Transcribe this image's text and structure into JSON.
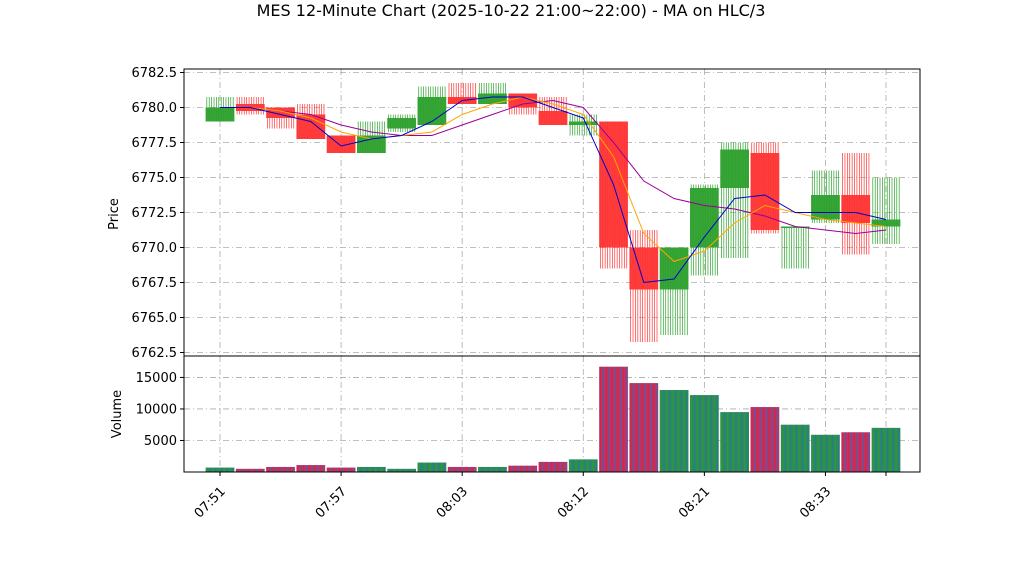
{
  "title": "MES 12-Minute Chart (2025-10-22 21:00~22:00) - MA on HLC/3",
  "chart_data": {
    "type": "candlestick",
    "title": "MES 12-Minute Chart (2025-10-22 21:00~22:00) - MA on HLC/3",
    "price_ylabel": "Price",
    "volume_ylabel": "Volume",
    "price_ylim": [
      6762.25,
      6782.75
    ],
    "price_ticks": [
      "6762.5",
      "6765.0",
      "6767.5",
      "6770.0",
      "6772.5",
      "6775.0",
      "6777.5",
      "6780.0",
      "6782.5"
    ],
    "volume_ylim": [
      0,
      18400
    ],
    "volume_ticks": [
      "5000",
      "10000",
      "15000"
    ],
    "x_tick_labels": [
      "07:51",
      "07:57",
      "08:03",
      "08:12",
      "08:21",
      "08:33"
    ],
    "colors": {
      "up": "#2ca02c",
      "down": "#ff3333",
      "ma_fast": "#0000cc",
      "ma_mid": "#ffa500",
      "ma_slow": "#990099",
      "grid": "#aaaaaa"
    },
    "candles": [
      {
        "open": 6779.0,
        "high": 6780.75,
        "low": 6779.0,
        "close": 6780.0,
        "volume": 700
      },
      {
        "open": 6780.25,
        "high": 6780.75,
        "low": 6779.5,
        "close": 6779.75,
        "volume": 500
      },
      {
        "open": 6780.0,
        "high": 6780.0,
        "low": 6778.5,
        "close": 6779.25,
        "volume": 800
      },
      {
        "open": 6779.5,
        "high": 6780.25,
        "low": 6777.75,
        "close": 6777.75,
        "volume": 1100
      },
      {
        "open": 6778.0,
        "high": 6778.0,
        "low": 6776.75,
        "close": 6776.75,
        "volume": 700
      },
      {
        "open": 6776.75,
        "high": 6779.0,
        "low": 6776.75,
        "close": 6778.0,
        "volume": 800
      },
      {
        "open": 6778.5,
        "high": 6779.5,
        "low": 6778.25,
        "close": 6779.25,
        "volume": 500
      },
      {
        "open": 6778.75,
        "high": 6781.5,
        "low": 6778.75,
        "close": 6780.75,
        "volume": 1500
      },
      {
        "open": 6780.75,
        "high": 6781.75,
        "low": 6780.25,
        "close": 6780.25,
        "volume": 800
      },
      {
        "open": 6780.25,
        "high": 6781.75,
        "low": 6780.25,
        "close": 6781.0,
        "volume": 800
      },
      {
        "open": 6781.0,
        "high": 6781.0,
        "low": 6779.5,
        "close": 6780.0,
        "volume": 1000
      },
      {
        "open": 6779.75,
        "high": 6780.75,
        "low": 6778.75,
        "close": 6778.75,
        "volume": 1600
      },
      {
        "open": 6778.75,
        "high": 6779.5,
        "low": 6778.0,
        "close": 6779.0,
        "volume": 2000
      },
      {
        "open": 6779.0,
        "high": 6779.0,
        "low": 6768.5,
        "close": 6770.0,
        "volume": 16700
      },
      {
        "open": 6770.0,
        "high": 6771.25,
        "low": 6763.25,
        "close": 6767.0,
        "volume": 14100
      },
      {
        "open": 6767.0,
        "high": 6770.0,
        "low": 6763.75,
        "close": 6770.0,
        "volume": 13000
      },
      {
        "open": 6770.0,
        "high": 6774.5,
        "low": 6768.0,
        "close": 6774.25,
        "volume": 12200
      },
      {
        "open": 6774.25,
        "high": 6777.5,
        "low": 6769.25,
        "close": 6777.0,
        "volume": 9500
      },
      {
        "open": 6776.75,
        "high": 6777.5,
        "low": 6771.0,
        "close": 6771.25,
        "volume": 10300
      },
      {
        "open": 6771.5,
        "high": 6771.5,
        "low": 6768.5,
        "close": 6771.5,
        "volume": 7500
      },
      {
        "open": 6772.0,
        "high": 6775.5,
        "low": 6771.75,
        "close": 6773.75,
        "volume": 5900
      },
      {
        "open": 6773.75,
        "high": 6776.75,
        "low": 6769.5,
        "close": 6771.75,
        "volume": 6300
      },
      {
        "open": 6771.5,
        "high": 6775.0,
        "low": 6770.25,
        "close": 6772.0,
        "volume": 7000
      }
    ],
    "ma_fast": [
      6780.0,
      6780.0,
      6779.5,
      6779.0,
      6777.25,
      6777.75,
      6778.0,
      6779.0,
      6780.5,
      6780.75,
      6780.75,
      6780.0,
      6779.25,
      6774.5,
      6767.5,
      6767.75,
      6770.75,
      6773.5,
      6773.75,
      6772.5,
      6772.5,
      6772.5,
      6772.0
    ],
    "ma_mid": [
      6780.0,
      6780.0,
      6779.75,
      6779.25,
      6778.25,
      6777.75,
      6778.0,
      6778.25,
      6779.5,
      6780.25,
      6780.75,
      6780.25,
      6779.5,
      6776.5,
      6771.0,
      6769.0,
      6769.75,
      6771.75,
      6773.0,
      6772.5,
      6772.0,
      6771.75,
      6771.5
    ],
    "ma_slow": [
      6780.0,
      6780.0,
      6779.75,
      6779.5,
      6778.75,
      6778.25,
      6778.0,
      6778.0,
      6778.75,
      6779.5,
      6780.25,
      6780.5,
      6780.0,
      6777.5,
      6774.75,
      6773.5,
      6773.0,
      6772.75,
      6772.25,
      6771.5,
      6771.25,
      6771.0,
      6771.25
    ]
  }
}
